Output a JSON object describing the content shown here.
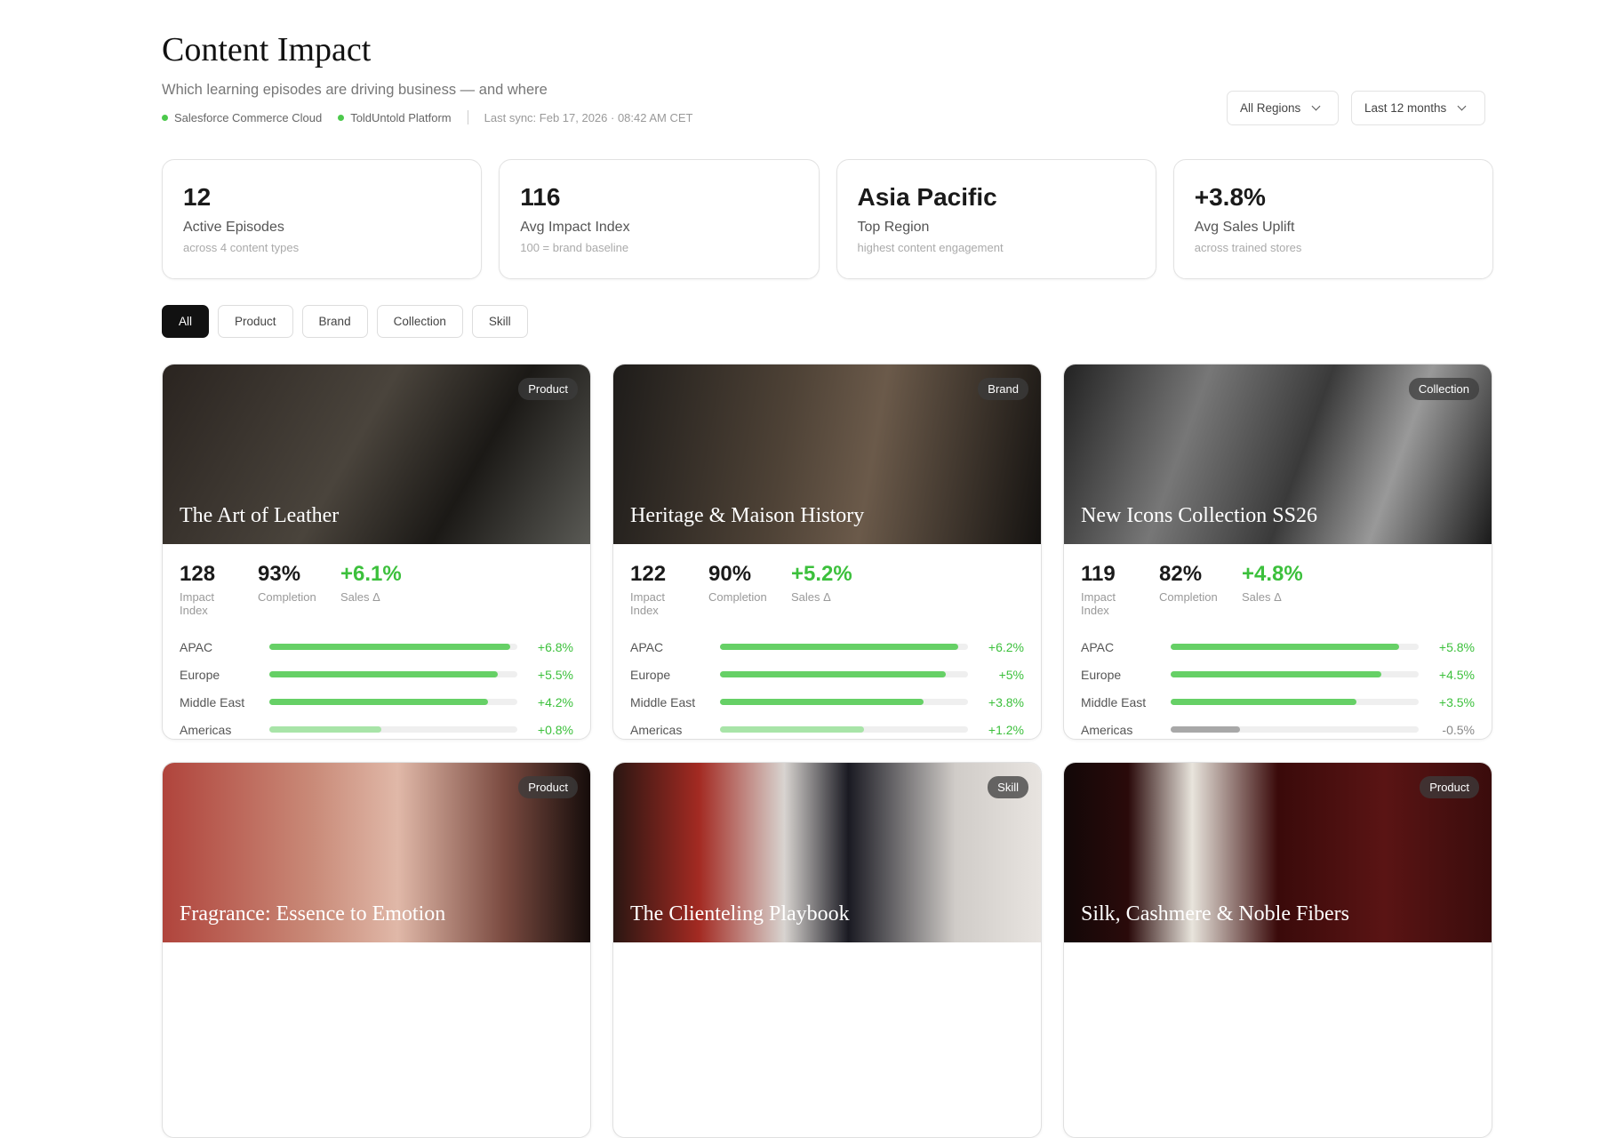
{
  "header": {
    "title": "Content Impact",
    "subtitle": "Which learning episodes are driving business — and where",
    "sources": [
      "Salesforce Commerce Cloud",
      "ToldUntold Platform"
    ],
    "last_sync": "Last sync: Feb 17, 2026 · 08:42 AM CET",
    "region_filter": "All Regions",
    "period_filter": "Last 12 months"
  },
  "kpis": [
    {
      "value": "12",
      "label": "Active Episodes",
      "sub": "across 4 content types"
    },
    {
      "value": "116",
      "label": "Avg Impact Index",
      "sub": "100 = brand baseline"
    },
    {
      "value": "Asia Pacific",
      "label": "Top Region",
      "sub": "highest content engagement"
    },
    {
      "value": "+3.8%",
      "label": "Avg Sales Uplift",
      "sub": "across trained stores"
    }
  ],
  "filters": [
    "All",
    "Product",
    "Brand",
    "Collection",
    "Skill"
  ],
  "active_filter": "All",
  "stat_labels": {
    "impact": "Impact Index",
    "completion": "Completion",
    "sales": "Sales Δ"
  },
  "colors": {
    "positive": "#3cc03c",
    "bar_strong": "#66d066",
    "bar_light": "#a8e4a8",
    "bar_negative": "#a8a8a8"
  },
  "episodes": [
    {
      "title": "The Art of Leather",
      "type": "Product",
      "impact": "128",
      "completion": "93%",
      "sales": "+6.1%",
      "bg": "linear-gradient(120deg,#2a2420,#4a443c 45%,#1b1916 70%,#5a5a55)",
      "regions": [
        {
          "name": "APAC",
          "value": "+6.8%",
          "level": 0.97
        },
        {
          "name": "Europe",
          "value": "+5.5%",
          "level": 0.92
        },
        {
          "name": "Middle East",
          "value": "+4.2%",
          "level": 0.88
        },
        {
          "name": "Americas",
          "value": "+0.8%",
          "level": 0.45
        }
      ]
    },
    {
      "title": "Heritage & Maison History",
      "type": "Brand",
      "impact": "122",
      "completion": "90%",
      "sales": "+5.2%",
      "bg": "linear-gradient(100deg,#1e1c1a,#4e4236 40%,#6b5a4a 60%,#141210)",
      "regions": [
        {
          "name": "APAC",
          "value": "+6.2%",
          "level": 0.96
        },
        {
          "name": "Europe",
          "value": "+5%",
          "level": 0.91
        },
        {
          "name": "Middle East",
          "value": "+3.8%",
          "level": 0.82
        },
        {
          "name": "Americas",
          "value": "+1.2%",
          "level": 0.58
        }
      ]
    },
    {
      "title": "New Icons Collection SS26",
      "type": "Collection",
      "impact": "119",
      "completion": "82%",
      "sales": "+4.8%",
      "bg": "linear-gradient(110deg,#222,#777 30%,#3a3a3a 55%,#999 75%,#1a1a1a)",
      "regions": [
        {
          "name": "APAC",
          "value": "+5.8%",
          "level": 0.92
        },
        {
          "name": "Europe",
          "value": "+4.5%",
          "level": 0.85
        },
        {
          "name": "Middle East",
          "value": "+3.5%",
          "level": 0.75
        },
        {
          "name": "Americas",
          "value": "-0.5%",
          "level": 0.28
        }
      ]
    },
    {
      "title": "Fragrance: Essence to Emotion",
      "type": "Product",
      "bg": "linear-gradient(90deg,#b0443c,#c98a78 35%,#e0b8a8 55%,#7a4a40 80%,#150c0a)"
    },
    {
      "title": "The Clienteling Playbook",
      "type": "Skill",
      "bg": "linear-gradient(90deg,#2a1612,#a32a22 20%,#d8d4d0 40%,#1a1a22 55%,#d0ccc8 80%,#e8e4e0)"
    },
    {
      "title": "Silk, Cashmere & Noble Fibers",
      "type": "Product",
      "bg": "linear-gradient(90deg,#120808,#2a0a0a 15%,#e8e4dc 30%,#3a0a0a 50%,#5a1414 75%,#3a0c0c)"
    }
  ]
}
